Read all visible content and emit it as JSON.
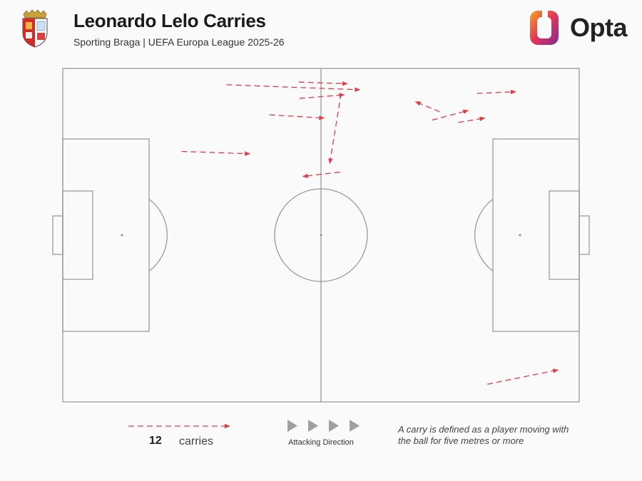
{
  "header": {
    "title": "Leonardo Lelo Carries",
    "subtitle": "Sporting Braga | UEFA Europa League 2025-26",
    "brand": "Opta"
  },
  "colors": {
    "carry": "#e23b4a",
    "pitch_lines": "#9a9a9a",
    "background": "#fafafa",
    "direction_arrows": "#a0a0a0"
  },
  "legend": {
    "count": "12",
    "label": "carries",
    "direction_label": "Attacking Direction",
    "definition": "A carry is defined as a player moving with the ball for five metres or more"
  },
  "chart_data": {
    "type": "scatter",
    "title": "Leonardo Lelo Carries",
    "pitch_dimensions": {
      "x": [
        0,
        100
      ],
      "y": [
        0,
        100
      ]
    },
    "attacking_direction": "left-to-right",
    "carries": [
      {
        "x_start": 31.7,
        "y_start": 95.1,
        "x_end": 57.5,
        "y_end": 93.6
      },
      {
        "x_start": 45.8,
        "y_start": 91.0,
        "x_end": 54.5,
        "y_end": 92.1
      },
      {
        "x_start": 45.7,
        "y_start": 95.9,
        "x_end": 55.1,
        "y_end": 95.4
      },
      {
        "x_start": 53.9,
        "y_start": 92.5,
        "x_end": 51.7,
        "y_end": 71.5
      },
      {
        "x_start": 40.0,
        "y_start": 86.1,
        "x_end": 50.6,
        "y_end": 85.1
      },
      {
        "x_start": 23.0,
        "y_start": 75.1,
        "x_end": 36.2,
        "y_end": 74.4
      },
      {
        "x_start": 53.7,
        "y_start": 68.9,
        "x_end": 46.5,
        "y_end": 67.6
      },
      {
        "x_start": 73.0,
        "y_start": 87.0,
        "x_end": 68.3,
        "y_end": 90.0
      },
      {
        "x_start": 71.5,
        "y_start": 84.5,
        "x_end": 78.5,
        "y_end": 87.4
      },
      {
        "x_start": 76.6,
        "y_start": 83.8,
        "x_end": 81.7,
        "y_end": 85.1
      },
      {
        "x_start": 80.2,
        "y_start": 92.5,
        "x_end": 87.7,
        "y_end": 93.0
      },
      {
        "x_start": 82.2,
        "y_start": 5.3,
        "x_end": 95.9,
        "y_end": 9.6
      }
    ]
  }
}
